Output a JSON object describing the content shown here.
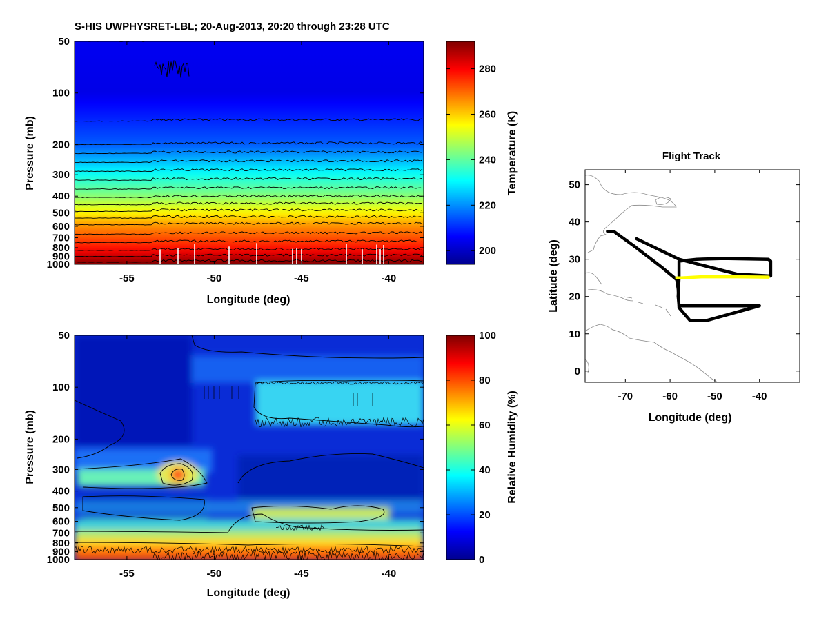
{
  "title": "S-HIS UWPHYSRET-LBL;   20-Aug-2013, 20:20 through 23:28 UTC",
  "chart_data": [
    {
      "type": "heatmap",
      "name": "temperature-profile",
      "xlabel": "Longitude (deg)",
      "ylabel": "Pressure (mb)",
      "xlim": [
        -58,
        -38
      ],
      "xticks": [
        -55,
        -50,
        -45,
        -40
      ],
      "ylim": [
        50,
        1000
      ],
      "yscale": "log",
      "yticks": [
        50,
        100,
        200,
        300,
        400,
        500,
        600,
        700,
        800,
        900,
        1000
      ],
      "colorbar": {
        "label": "Temperature (K)",
        "clim": [
          194,
          292
        ],
        "ticks": [
          200,
          220,
          240,
          260,
          280
        ]
      },
      "profile": {
        "pressure": [
          50,
          100,
          200,
          300,
          400,
          500,
          600,
          700,
          800,
          900,
          1000
        ],
        "temperature": [
          205,
          204,
          215,
          232,
          244,
          256,
          266,
          272,
          278,
          285,
          292
        ]
      },
      "contour_levels": [
        205,
        210,
        215,
        220,
        225,
        230,
        235,
        240,
        245,
        250,
        255,
        260,
        265,
        270,
        275,
        280,
        285,
        290
      ]
    },
    {
      "type": "heatmap",
      "name": "relative-humidity-profile",
      "xlabel": "Longitude (deg)",
      "ylabel": "Pressure (mb)",
      "xlim": [
        -58,
        -38
      ],
      "xticks": [
        -55,
        -50,
        -45,
        -40
      ],
      "ylim": [
        50,
        1000
      ],
      "yscale": "log",
      "yticks": [
        50,
        100,
        200,
        300,
        400,
        500,
        600,
        700,
        800,
        900,
        1000
      ],
      "colorbar": {
        "label": "Relative Humidity (%)",
        "clim": [
          0,
          100
        ],
        "ticks": [
          0,
          20,
          40,
          60,
          80,
          100
        ]
      },
      "features": [
        {
          "name": "upper-moist-layer",
          "lon": [
            -47.5,
            -38
          ],
          "pressure": [
            90,
            165
          ],
          "rh": 35
        },
        {
          "name": "mid-moist-layer",
          "lon": [
            -58,
            -51
          ],
          "pressure": [
            310,
            370
          ],
          "rh": 45
        },
        {
          "name": "moist-core",
          "lon": [
            -53,
            -51.5
          ],
          "pressure": [
            300,
            350
          ],
          "rh": 85
        },
        {
          "name": "moist-band",
          "lon": [
            -47.5,
            -39
          ],
          "pressure": [
            520,
            600
          ],
          "rh": 55
        },
        {
          "name": "boundary-layer",
          "lon": [
            -58,
            -38
          ],
          "pressure": [
            650,
            1000
          ],
          "rh": 75
        }
      ]
    },
    {
      "type": "line",
      "name": "flight-track",
      "title": "Flight Track",
      "xlabel": "Longitude (deg)",
      "ylabel": "Latitude (deg)",
      "xlim": [
        -79,
        -31
      ],
      "ylim": [
        -3,
        54
      ],
      "xticks": [
        -70,
        -60,
        -50,
        -40
      ],
      "yticks": [
        0,
        10,
        20,
        30,
        40,
        50
      ],
      "track": {
        "lon": [
          -74,
          -72.5,
          -68,
          -62,
          -58.5,
          -58.2,
          -58,
          -55.5,
          -52,
          -40,
          -55.5,
          -58,
          -58.2,
          -58,
          -58,
          -54,
          -48,
          -38,
          -37.5,
          -37.5,
          -45,
          -58,
          -67.5
        ],
        "lat": [
          37.5,
          37.4,
          33.5,
          28,
          24.5,
          22,
          17,
          13.5,
          13.5,
          17.5,
          17.5,
          17.5,
          20,
          25,
          29.5,
          30,
          30.2,
          30,
          29.5,
          25.5,
          26,
          30,
          35.5
        ],
        "color": "#000000"
      },
      "highlight": {
        "lon": [
          -58.5,
          -57.5,
          -53,
          -45,
          -38
        ],
        "lat": [
          25,
          25,
          25.3,
          25.3,
          25.2
        ],
        "color": "#ffff00"
      }
    }
  ]
}
